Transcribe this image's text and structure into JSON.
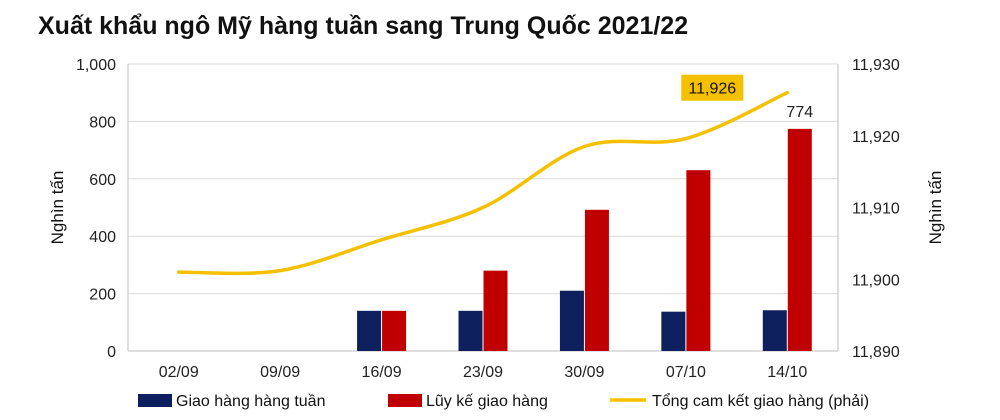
{
  "chart_data": {
    "type": "bar",
    "title": "Xuất khẩu ngô Mỹ hàng tuần sang Trung Quốc 2021/22",
    "categories": [
      "02/09",
      "09/09",
      "16/09",
      "23/09",
      "30/09",
      "07/10",
      "14/10"
    ],
    "ylabel_left": "Nghìn tấn",
    "ylabel_right": "Nghìn tấn",
    "ylim_left": [
      0,
      1000
    ],
    "ylim_right": [
      11890,
      11930
    ],
    "yticks_left": [
      "0",
      "200",
      "400",
      "600",
      "800",
      "1,000"
    ],
    "yticks_right": [
      "11,890",
      "11,900",
      "11,910",
      "11,920",
      "11,930"
    ],
    "grid": true,
    "series": [
      {
        "name": "Giao hàng hàng tuần",
        "type": "bar",
        "axis": "left",
        "color": "#0d1f5c",
        "values": [
          0,
          0,
          140,
          140,
          210,
          137,
          142
        ]
      },
      {
        "name": "Lũy kế giao hàng",
        "type": "bar",
        "axis": "left",
        "color": "#c00000",
        "values": [
          0,
          0,
          140,
          280,
          492,
          630,
          774
        ]
      },
      {
        "name": "Tổng cam kết giao hàng (phải)",
        "type": "line",
        "axis": "right",
        "color": "#f5c000",
        "values": [
          11901,
          11901.2,
          11905.5,
          11910,
          11918.5,
          11919.6,
          11926
        ]
      }
    ],
    "annotations": [
      {
        "text": "774",
        "series": 1,
        "index": 6
      },
      {
        "text": "11,926",
        "series": 2,
        "index": 6,
        "highlight": "#f5c000"
      }
    ],
    "legend_position": "bottom"
  }
}
